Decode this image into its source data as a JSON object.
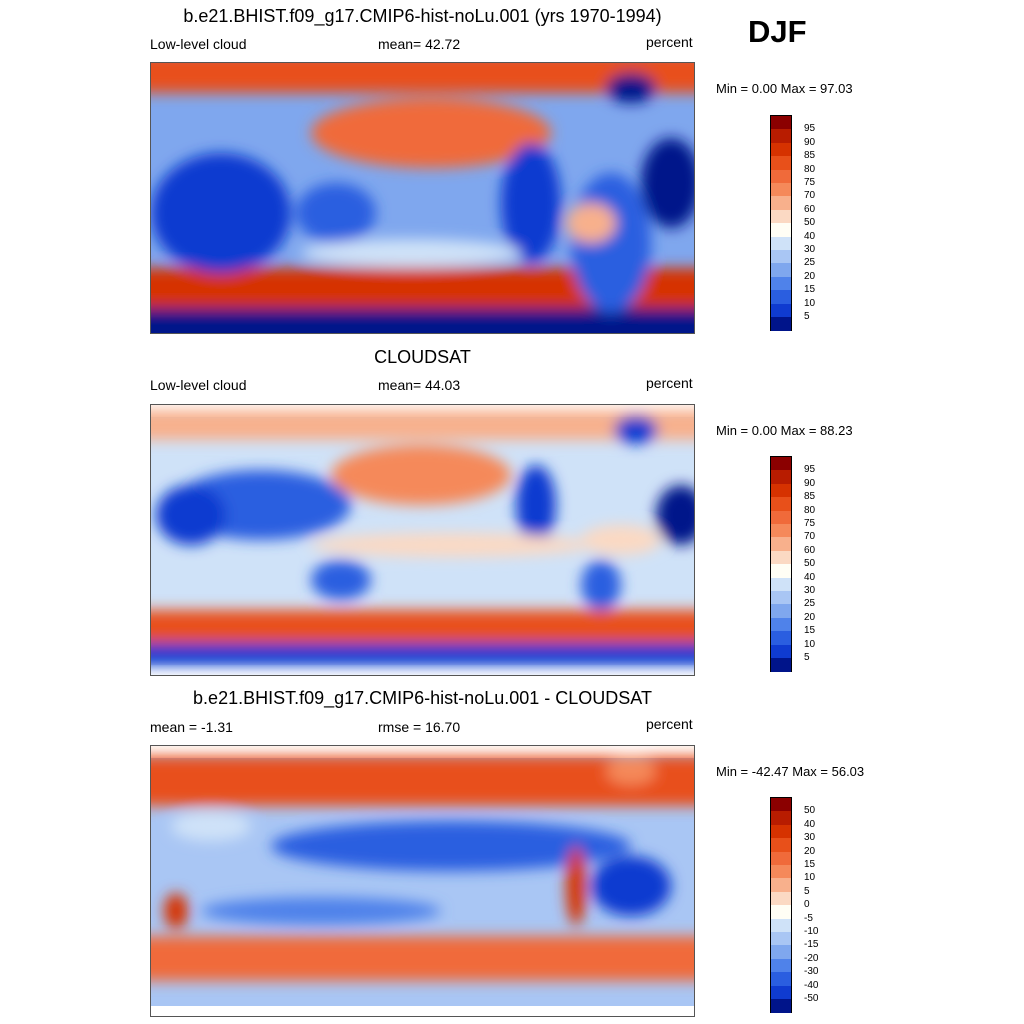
{
  "season": "DJF",
  "panels": [
    {
      "title": "b.e21.BHIST.f09_g17.CMIP6-hist-noLu.001 (yrs 1970-1994)",
      "left_label": "Low-level cloud",
      "center_label": "mean=  42.72",
      "right_label": "percent",
      "minmax": "Min =   0.00 Max =  97.03",
      "colorbar": {
        "levels": [
          "95",
          "90",
          "85",
          "80",
          "75",
          "70",
          "60",
          "50",
          "40",
          "30",
          "25",
          "20",
          "15",
          "10",
          "5"
        ],
        "colors": [
          "#8b0000",
          "#b81c00",
          "#d63200",
          "#e8501a",
          "#f06a3a",
          "#f5895a",
          "#f8b08c",
          "#fbd9c3",
          "#fffef5",
          "#cfe2f8",
          "#a9c6f4",
          "#7fa7ee",
          "#4f82ea",
          "#2a5ee0",
          "#0f3bd0",
          "#00148a"
        ]
      }
    },
    {
      "title": "CLOUDSAT",
      "left_label": "Low-level cloud",
      "center_label": "mean=  44.03",
      "right_label": "percent",
      "minmax": "Min =   0.00 Max =  88.23",
      "colorbar": {
        "levels": [
          "95",
          "90",
          "85",
          "80",
          "75",
          "70",
          "60",
          "50",
          "40",
          "30",
          "25",
          "20",
          "15",
          "10",
          "5"
        ],
        "colors": [
          "#8b0000",
          "#b81c00",
          "#d63200",
          "#e8501a",
          "#f06a3a",
          "#f5895a",
          "#f8b08c",
          "#fbd9c3",
          "#fffef5",
          "#cfe2f8",
          "#a9c6f4",
          "#7fa7ee",
          "#4f82ea",
          "#2a5ee0",
          "#0f3bd0",
          "#00148a"
        ]
      }
    },
    {
      "title": "b.e21.BHIST.f09_g17.CMIP6-hist-noLu.001 - CLOUDSAT",
      "left_label": "mean =  -1.31",
      "center_label": "rmse =  16.70",
      "right_label": "percent",
      "minmax": "Min = -42.47 Max =  56.03",
      "colorbar": {
        "levels": [
          "50",
          "40",
          "30",
          "20",
          "15",
          "10",
          "5",
          "0",
          "-5",
          "-10",
          "-15",
          "-20",
          "-30",
          "-40",
          "-50"
        ],
        "colors": [
          "#8b0000",
          "#b81c00",
          "#d63200",
          "#e8501a",
          "#f06a3a",
          "#f5895a",
          "#f8b08c",
          "#fbd9c3",
          "#fffef5",
          "#cfe2f8",
          "#a9c6f4",
          "#7fa7ee",
          "#4f82ea",
          "#2a5ee0",
          "#0f3bd0",
          "#00148a"
        ]
      }
    }
  ]
}
